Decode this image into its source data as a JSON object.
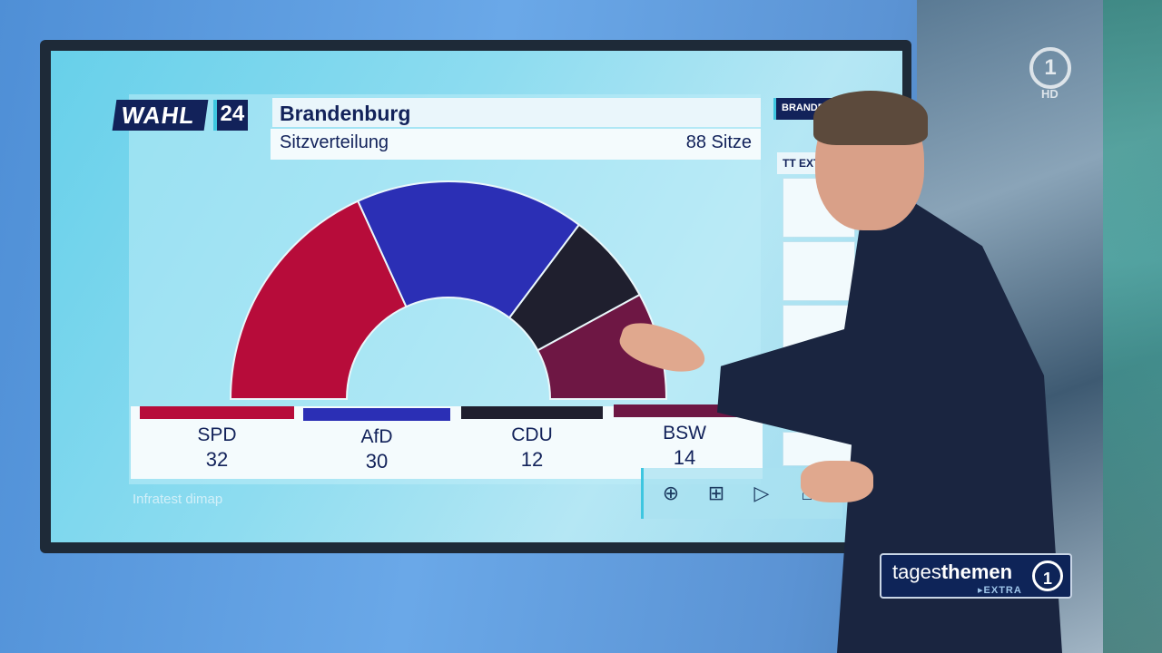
{
  "header": {
    "logo_text": "WAHL",
    "logo_year": "24",
    "title": "Brandenburg",
    "subtitle": "Sitzverteilung",
    "total_seats": "88 Sitze"
  },
  "source": "Infratest dimap",
  "side_panel": {
    "tab_label": "BRANDENBURG",
    "section_label": "TT EXTRA"
  },
  "toolbar": {
    "zoom_icon": "circle-plus-icon",
    "add_icon": "square-plus-icon",
    "play_icon": "play-icon",
    "home_icon": "home-icon"
  },
  "broadcast": {
    "show_name_regular": "tages",
    "show_name_bold": "themen",
    "show_extra": "▸EXTRA",
    "channel_logo": "1",
    "channel_hd": "HD"
  },
  "colors": {
    "SPD": "#b70c3a",
    "AfD": "#2b2fb5",
    "CDU": "#1f1f2e",
    "BSW": "#6e1744"
  },
  "chart_data": {
    "type": "pie",
    "subtype": "hemicycle",
    "title": "Brandenburg",
    "subtitle": "Sitzverteilung",
    "total": 88,
    "categories": [
      "SPD",
      "AfD",
      "CDU",
      "BSW"
    ],
    "values": [
      32,
      30,
      12,
      14
    ]
  }
}
